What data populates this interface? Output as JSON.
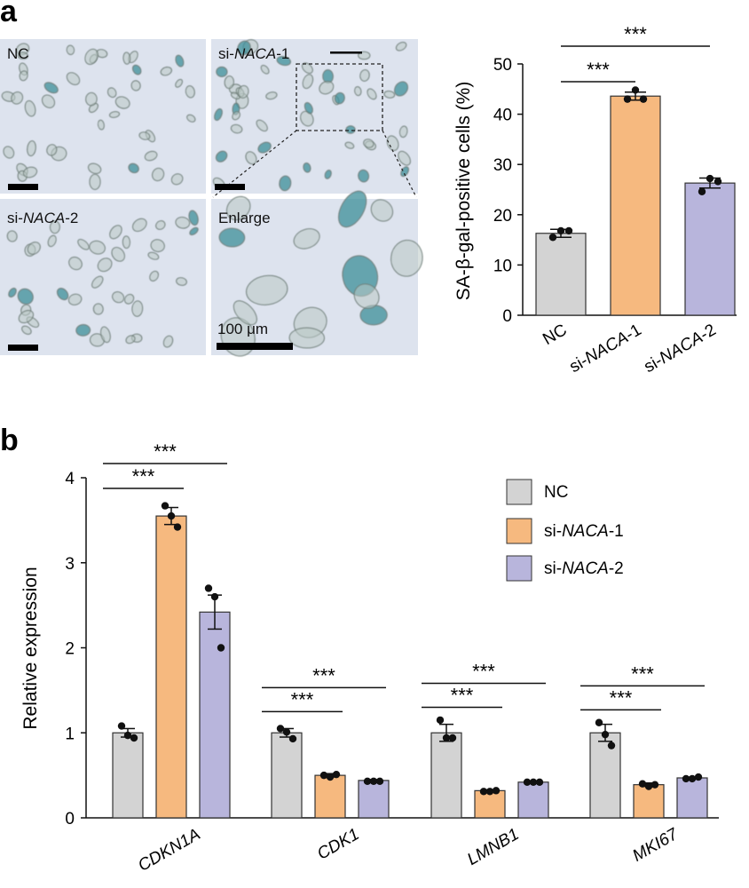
{
  "panels": {
    "a_label": "a",
    "b_label": "b"
  },
  "micrographs": [
    {
      "label": "NC",
      "italic": "",
      "suffix": ""
    },
    {
      "label": "si-",
      "italic": "NACA",
      "suffix": "-1"
    },
    {
      "label": "si-",
      "italic": "NACA",
      "suffix": "-2"
    },
    {
      "label": "Enlarge",
      "italic": "",
      "suffix": ""
    }
  ],
  "scale_bar_label": "100 μm",
  "colors": {
    "NC": "#d3d3d3",
    "si-NACA-1": "#f6b97f",
    "si-NACA-2": "#b8b5dc",
    "stain": "#3f8f9a",
    "micro_bg": "#dde3ee",
    "axis": "#111111"
  },
  "chart_data": [
    {
      "type": "bar",
      "panel": "a",
      "categories": [
        "NC",
        "si-NACA-1",
        "si-NACA-2"
      ],
      "category_labels": [
        {
          "prefix": "NC",
          "italic": "",
          "suffix": ""
        },
        {
          "prefix": "si-",
          "italic": "NACA",
          "suffix": "-1"
        },
        {
          "prefix": "si-",
          "italic": "NACA",
          "suffix": "-2"
        }
      ],
      "values": [
        16.3,
        43.6,
        26.3
      ],
      "errors": [
        0.8,
        0.8,
        1.0
      ],
      "points": [
        [
          16.8,
          16.8,
          15.5
        ],
        [
          44.8,
          43.0,
          43.0
        ],
        [
          27.2,
          26.6,
          24.6
        ]
      ],
      "ylabel": "SA-β-gal-positive cells (%)",
      "ylim": [
        0,
        50
      ],
      "yticks": [
        0,
        10,
        20,
        30,
        40,
        50
      ],
      "significance": [
        {
          "from": 0,
          "to": 1,
          "label": "***"
        },
        {
          "from": 0,
          "to": 2,
          "label": "***"
        }
      ]
    },
    {
      "type": "bar",
      "panel": "b",
      "categories": [
        "CDKN1A",
        "CDK1",
        "LMNB1",
        "MKI67"
      ],
      "series": [
        {
          "name": "NC",
          "values": [
            1.0,
            1.0,
            1.0,
            1.0
          ],
          "errors": [
            0.05,
            0.05,
            0.1,
            0.1
          ],
          "points": [
            [
              1.08,
              0.97,
              0.94
            ],
            [
              1.05,
              1.01,
              0.93
            ],
            [
              1.15,
              0.94,
              0.94
            ],
            [
              1.12,
              0.98,
              0.85
            ]
          ]
        },
        {
          "name": "si-NACA-1",
          "values": [
            3.55,
            0.5,
            0.32,
            0.39
          ],
          "errors": [
            0.1,
            0.02,
            0.01,
            0.02
          ],
          "points": [
            [
              3.67,
              3.55,
              3.42
            ],
            [
              0.5,
              0.48,
              0.51
            ],
            [
              0.31,
              0.31,
              0.32
            ],
            [
              0.4,
              0.37,
              0.39
            ]
          ]
        },
        {
          "name": "si-NACA-2",
          "values": [
            2.42,
            0.44,
            0.42,
            0.47
          ],
          "errors": [
            0.2,
            0.01,
            0.01,
            0.01
          ],
          "points": [
            [
              2.7,
              2.6,
              2.0
            ],
            [
              0.43,
              0.43,
              0.43
            ],
            [
              0.42,
              0.42,
              0.42
            ],
            [
              0.46,
              0.46,
              0.48
            ]
          ]
        }
      ],
      "ylabel": "Relative expression",
      "ylim": [
        0,
        4
      ],
      "yticks": [
        0,
        1,
        2,
        3,
        4
      ],
      "legend": "top-right",
      "legend_entries": [
        {
          "prefix": "NC",
          "italic": "",
          "suffix": ""
        },
        {
          "prefix": "si-",
          "italic": "NACA",
          "suffix": "-1"
        },
        {
          "prefix": "si-",
          "italic": "NACA",
          "suffix": "-2"
        }
      ],
      "significance": [
        {
          "group": 0,
          "from": 0,
          "to": 1,
          "label": "***"
        },
        {
          "group": 0,
          "from": 0,
          "to": 2,
          "label": "***"
        },
        {
          "group": 1,
          "from": 0,
          "to": 1,
          "label": "***"
        },
        {
          "group": 1,
          "from": 0,
          "to": 2,
          "label": "***"
        },
        {
          "group": 2,
          "from": 0,
          "to": 1,
          "label": "***"
        },
        {
          "group": 2,
          "from": 0,
          "to": 2,
          "label": "***"
        },
        {
          "group": 3,
          "from": 0,
          "to": 1,
          "label": "***"
        },
        {
          "group": 3,
          "from": 0,
          "to": 2,
          "label": "***"
        }
      ]
    }
  ]
}
